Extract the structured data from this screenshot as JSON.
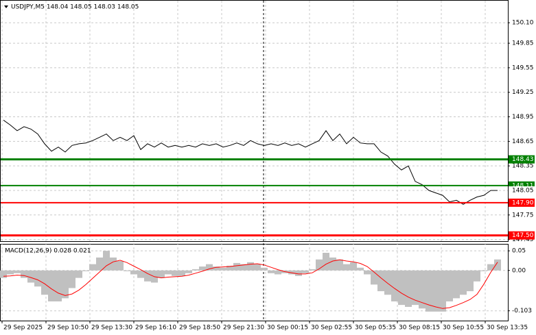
{
  "chart_data": [
    {
      "type": "line",
      "title": "USDJPY,M5  148.04 148.05 148.03 148.05",
      "color": "#000000",
      "values": [
        148.91,
        148.85,
        148.78,
        148.83,
        148.8,
        148.74,
        148.62,
        148.53,
        148.58,
        148.52,
        148.6,
        148.62,
        148.63,
        148.66,
        148.7,
        148.74,
        148.66,
        148.7,
        148.66,
        148.72,
        148.55,
        148.62,
        148.58,
        148.63,
        148.58,
        148.6,
        148.58,
        148.6,
        148.58,
        148.62,
        148.6,
        148.62,
        148.58,
        148.6,
        148.63,
        148.6,
        148.66,
        148.62,
        148.6,
        148.62,
        148.6,
        148.63,
        148.6,
        148.62,
        148.58,
        148.62,
        148.66,
        148.78,
        148.66,
        148.74,
        148.62,
        148.7,
        148.63,
        148.62,
        148.62,
        148.52,
        148.47,
        148.37,
        148.3,
        148.35,
        148.16,
        148.12,
        148.05,
        148.02,
        147.99,
        147.91,
        147.93,
        147.88,
        147.93,
        147.97,
        147.99,
        148.05,
        148.05
      ],
      "ylim": [
        147.43,
        150.37
      ],
      "yticks": [
        {
          "value": 150.1,
          "label": "150.10"
        },
        149.85,
        149.55,
        149.25,
        148.95,
        148.65,
        148.35,
        148.05,
        147.75,
        147.45
      ],
      "grid": true,
      "levels": [
        {
          "value": 148.43,
          "color": "#008000",
          "width": 3
        },
        {
          "value": 148.11,
          "color": "#008000",
          "width": 2
        },
        {
          "value": {
            "value": 147.9,
            "label": "147.90"
          },
          "color": "#ff0000",
          "width": 2
        },
        {
          "value": {
            "value": 147.5,
            "label": "147.50"
          },
          "color": "#ff0000",
          "width": 3
        }
      ],
      "time_labels": [
        "29 Sep 2025",
        "29 Sep 10:50",
        "29 Sep 13:30",
        "29 Sep 16:10",
        "29 Sep 18:50",
        "29 Sep 21:30",
        "30 Sep 00:15",
        "30 Sep 02:55",
        "30 Sep 05:35",
        "30 Sep 08:15",
        "30 Sep 10:55",
        "30 Sep 13:35"
      ]
    },
    {
      "type": "macd",
      "title": "MACD(12,26,9) 0.028 0.021",
      "histogram": {
        "color": "#c0c0c0",
        "values": [
          -0.019,
          -0.01,
          -0.007,
          -0.019,
          -0.031,
          -0.041,
          -0.062,
          -0.079,
          -0.079,
          -0.071,
          -0.045,
          -0.019,
          -0.002,
          0.016,
          0.033,
          0.05,
          0.033,
          0.024,
          -0.002,
          -0.01,
          -0.019,
          -0.028,
          -0.031,
          -0.019,
          -0.01,
          -0.014,
          -0.014,
          -0.007,
          0.003,
          0.01,
          0.016,
          0.01,
          0.007,
          0.012,
          0.019,
          0.016,
          0.021,
          0.016,
          0.007,
          -0.007,
          -0.01,
          -0.007,
          -0.01,
          -0.014,
          -0.007,
          0.003,
          0.028,
          0.045,
          0.033,
          0.028,
          0.016,
          0.021,
          0.007,
          -0.01,
          -0.036,
          -0.053,
          -0.062,
          -0.079,
          -0.088,
          -0.093,
          -0.088,
          -0.097,
          -0.105,
          -0.105,
          -0.105,
          -0.079,
          -0.071,
          -0.062,
          -0.053,
          -0.028,
          -0.002,
          0.016,
          0.028
        ]
      },
      "signal": {
        "color": "#ff0000",
        "values": [
          -0.015,
          -0.014,
          -0.012,
          -0.013,
          -0.018,
          -0.024,
          -0.034,
          -0.047,
          -0.058,
          -0.064,
          -0.06,
          -0.05,
          -0.036,
          -0.02,
          -0.004,
          0.012,
          0.022,
          0.026,
          0.02,
          0.011,
          0.002,
          -0.008,
          -0.016,
          -0.019,
          -0.017,
          -0.016,
          -0.015,
          -0.012,
          -0.007,
          -0.002,
          0.004,
          0.008,
          0.009,
          0.01,
          0.012,
          0.014,
          0.016,
          0.017,
          0.014,
          0.008,
          0.002,
          -0.003,
          -0.006,
          -0.009,
          -0.009,
          -0.006,
          0.004,
          0.016,
          0.024,
          0.027,
          0.024,
          0.022,
          0.018,
          0.01,
          -0.004,
          -0.019,
          -0.033,
          -0.046,
          -0.058,
          -0.068,
          -0.076,
          -0.082,
          -0.088,
          -0.093,
          -0.097,
          -0.095,
          -0.089,
          -0.082,
          -0.074,
          -0.061,
          -0.035,
          -0.005,
          0.021
        ]
      },
      "ylim": [
        -0.128,
        0.066
      ],
      "yticks": [
        0.05,
        {
          "value": 0,
          "label": "0.00"
        },
        -0.103
      ],
      "grid": true
    }
  ]
}
